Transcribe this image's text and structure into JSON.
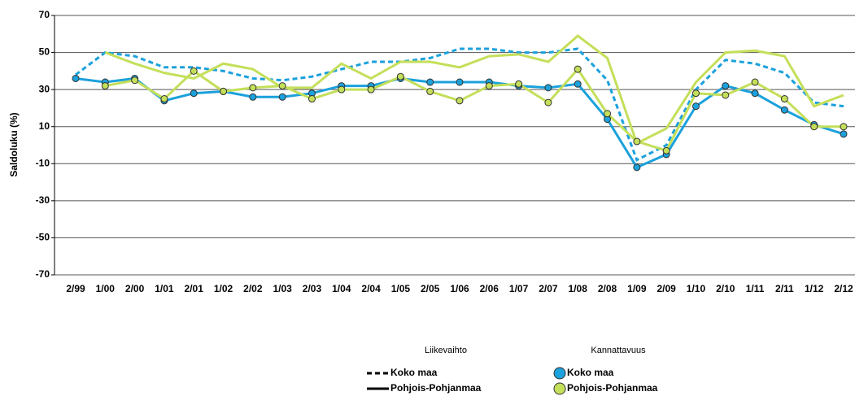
{
  "chart_data": {
    "type": "line",
    "y_label": "Saldoluku (%)",
    "categories": [
      "2/99",
      "1/00",
      "2/00",
      "1/01",
      "2/01",
      "1/02",
      "2/02",
      "1/03",
      "2/03",
      "1/04",
      "2/04",
      "1/05",
      "2/05",
      "1/06",
      "2/06",
      "1/07",
      "2/07",
      "1/08",
      "2/08",
      "1/09",
      "2/09",
      "1/10",
      "2/10",
      "1/11",
      "2/11",
      "1/12",
      "2/12"
    ],
    "ylim": [
      -70,
      70
    ],
    "yticks": [
      -70,
      -50,
      -30,
      -10,
      10,
      30,
      50,
      70
    ],
    "grid": true,
    "legend_position": "bottom",
    "legend_groups": [
      "Liikevaihto",
      "Kannattavuus"
    ],
    "series": [
      {
        "name": "Koko maa",
        "legend_group": 0,
        "color": "#1ba1dc",
        "line_style": "dashed",
        "markers": false,
        "values": [
          38,
          50,
          48,
          42,
          42,
          40,
          36,
          35,
          37,
          41,
          45,
          45,
          47,
          52,
          52,
          50,
          50,
          52,
          35,
          -8,
          0,
          30,
          46,
          44,
          39,
          23,
          21
        ]
      },
      {
        "name": "Pohjois-Pohjanmaa",
        "legend_group": 0,
        "color": "#c4df5a",
        "line_style": "solid",
        "markers": false,
        "values": [
          null,
          50,
          44,
          39,
          36,
          44,
          41,
          31,
          31,
          44,
          36,
          45,
          45,
          42,
          48,
          49,
          45,
          59,
          47,
          1,
          9,
          34,
          50,
          51,
          48,
          21,
          27
        ]
      },
      {
        "name": "Koko maa",
        "legend_group": 1,
        "color": "#1ba1dc",
        "line_style": "solid",
        "markers": true,
        "values": [
          36,
          34,
          36,
          24,
          28,
          29,
          26,
          26,
          28,
          32,
          32,
          36,
          34,
          34,
          34,
          32,
          31,
          33,
          14,
          -12,
          -5,
          21,
          32,
          28,
          19,
          11,
          6
        ]
      },
      {
        "name": "Pohjois-Pohjanmaa",
        "legend_group": 1,
        "color": "#c4df5a",
        "line_style": "solid",
        "markers": true,
        "values": [
          null,
          32,
          35,
          25,
          40,
          29,
          31,
          32,
          25,
          30,
          30,
          37,
          29,
          24,
          32,
          33,
          23,
          41,
          17,
          2,
          -3,
          28,
          27,
          34,
          25,
          10,
          10
        ]
      }
    ]
  }
}
